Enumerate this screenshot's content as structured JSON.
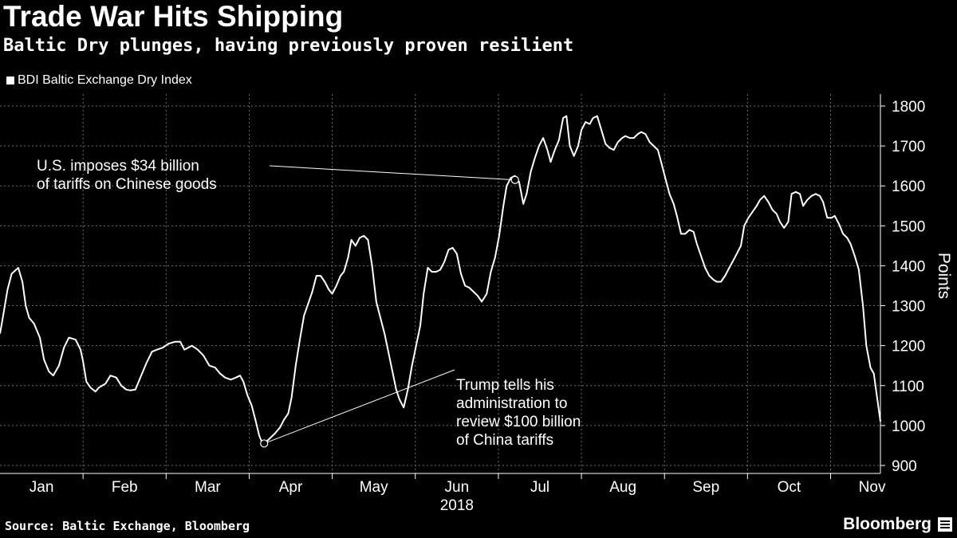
{
  "header": {
    "title": "Trade War Hits Shipping",
    "subtitle": "Baltic Dry plunges, having previously proven resilient"
  },
  "legend": {
    "label": "BDI Baltic Exchange Dry Index"
  },
  "footer": {
    "source": "Source: Baltic Exchange, Bloomberg",
    "brand": "Bloomberg"
  },
  "colors": {
    "background": "#000000",
    "line": "#ffffff",
    "grid": "#6e6e6e"
  },
  "chart_data": {
    "type": "line",
    "title": "Trade War Hits Shipping",
    "subtitle": "Baltic Dry plunges, having previously proven resilient",
    "xlabel": "2018",
    "ylabel": "Points",
    "ylim": [
      880,
      1830
    ],
    "yticks": [
      900,
      1000,
      1100,
      1200,
      1300,
      1400,
      1500,
      1600,
      1700,
      1800
    ],
    "xlim": [
      0,
      10.6
    ],
    "x_ticks": [
      {
        "label": "Jan",
        "x": 0.5
      },
      {
        "label": "Feb",
        "x": 1.5
      },
      {
        "label": "Mar",
        "x": 2.5
      },
      {
        "label": "Apr",
        "x": 3.5
      },
      {
        "label": "May",
        "x": 4.5
      },
      {
        "label": "Jun",
        "x": 5.5
      },
      {
        "label": "Jul",
        "x": 6.5
      },
      {
        "label": "Aug",
        "x": 7.5
      },
      {
        "label": "Sep",
        "x": 8.5
      },
      {
        "label": "Oct",
        "x": 9.5
      },
      {
        "label": "Nov",
        "x": 10.5
      }
    ],
    "month_boundaries": [
      1,
      2,
      3,
      4,
      5,
      6,
      7,
      8,
      9,
      10
    ],
    "year_label": {
      "label": "2018",
      "x": 5.5
    },
    "grid": true,
    "legend_position": "top-left",
    "series": [
      {
        "name": "BDI Baltic Exchange Dry Index",
        "points": [
          [
            0.0,
            1230
          ],
          [
            0.03,
            1265
          ],
          [
            0.09,
            1340
          ],
          [
            0.14,
            1380
          ],
          [
            0.22,
            1395
          ],
          [
            0.27,
            1360
          ],
          [
            0.31,
            1300
          ],
          [
            0.35,
            1270
          ],
          [
            0.41,
            1255
          ],
          [
            0.48,
            1220
          ],
          [
            0.53,
            1165
          ],
          [
            0.59,
            1135
          ],
          [
            0.64,
            1125
          ],
          [
            0.71,
            1150
          ],
          [
            0.77,
            1195
          ],
          [
            0.83,
            1220
          ],
          [
            0.91,
            1215
          ],
          [
            0.97,
            1190
          ],
          [
            1.0,
            1160
          ],
          [
            1.04,
            1110
          ],
          [
            1.09,
            1095
          ],
          [
            1.15,
            1085
          ],
          [
            1.19,
            1095
          ],
          [
            1.27,
            1105
          ],
          [
            1.33,
            1125
          ],
          [
            1.4,
            1120
          ],
          [
            1.46,
            1100
          ],
          [
            1.52,
            1090
          ],
          [
            1.57,
            1088
          ],
          [
            1.63,
            1090
          ],
          [
            1.69,
            1120
          ],
          [
            1.76,
            1155
          ],
          [
            1.83,
            1185
          ],
          [
            1.89,
            1190
          ],
          [
            1.96,
            1195
          ],
          [
            2.03,
            1205
          ],
          [
            2.11,
            1210
          ],
          [
            2.17,
            1210
          ],
          [
            2.22,
            1190
          ],
          [
            2.31,
            1200
          ],
          [
            2.38,
            1190
          ],
          [
            2.45,
            1175
          ],
          [
            2.52,
            1150
          ],
          [
            2.59,
            1145
          ],
          [
            2.65,
            1130
          ],
          [
            2.71,
            1120
          ],
          [
            2.78,
            1115
          ],
          [
            2.84,
            1120
          ],
          [
            2.89,
            1125
          ],
          [
            2.93,
            1110
          ],
          [
            2.98,
            1075
          ],
          [
            3.03,
            1050
          ],
          [
            3.08,
            1010
          ],
          [
            3.12,
            975
          ],
          [
            3.16,
            955
          ],
          [
            3.21,
            960
          ],
          [
            3.26,
            970
          ],
          [
            3.31,
            980
          ],
          [
            3.37,
            995
          ],
          [
            3.42,
            1015
          ],
          [
            3.47,
            1030
          ],
          [
            3.51,
            1070
          ],
          [
            3.56,
            1150
          ],
          [
            3.61,
            1215
          ],
          [
            3.66,
            1275
          ],
          [
            3.71,
            1305
          ],
          [
            3.76,
            1335
          ],
          [
            3.81,
            1375
          ],
          [
            3.86,
            1375
          ],
          [
            3.91,
            1360
          ],
          [
            3.96,
            1340
          ],
          [
            4.0,
            1330
          ],
          [
            4.05,
            1350
          ],
          [
            4.1,
            1375
          ],
          [
            4.14,
            1385
          ],
          [
            4.19,
            1420
          ],
          [
            4.23,
            1465
          ],
          [
            4.28,
            1450
          ],
          [
            4.33,
            1470
          ],
          [
            4.38,
            1475
          ],
          [
            4.43,
            1465
          ],
          [
            4.48,
            1400
          ],
          [
            4.53,
            1310
          ],
          [
            4.58,
            1270
          ],
          [
            4.63,
            1230
          ],
          [
            4.67,
            1190
          ],
          [
            4.72,
            1140
          ],
          [
            4.77,
            1090
          ],
          [
            4.81,
            1065
          ],
          [
            4.86,
            1045
          ],
          [
            4.91,
            1090
          ],
          [
            4.96,
            1150
          ],
          [
            5.01,
            1200
          ],
          [
            5.06,
            1250
          ],
          [
            5.1,
            1330
          ],
          [
            5.15,
            1395
          ],
          [
            5.2,
            1385
          ],
          [
            5.25,
            1385
          ],
          [
            5.3,
            1390
          ],
          [
            5.35,
            1410
          ],
          [
            5.4,
            1440
          ],
          [
            5.45,
            1445
          ],
          [
            5.5,
            1430
          ],
          [
            5.55,
            1380
          ],
          [
            5.6,
            1350
          ],
          [
            5.65,
            1345
          ],
          [
            5.7,
            1335
          ],
          [
            5.75,
            1325
          ],
          [
            5.8,
            1310
          ],
          [
            5.86,
            1330
          ],
          [
            5.91,
            1385
          ],
          [
            5.96,
            1420
          ],
          [
            6.01,
            1475
          ],
          [
            6.06,
            1550
          ],
          [
            6.1,
            1600
          ],
          [
            6.15,
            1620
          ],
          [
            6.2,
            1625
          ],
          [
            6.25,
            1610
          ],
          [
            6.3,
            1555
          ],
          [
            6.34,
            1580
          ],
          [
            6.39,
            1635
          ],
          [
            6.44,
            1670
          ],
          [
            6.49,
            1700
          ],
          [
            6.54,
            1720
          ],
          [
            6.59,
            1690
          ],
          [
            6.63,
            1660
          ],
          [
            6.68,
            1690
          ],
          [
            6.73,
            1715
          ],
          [
            6.78,
            1770
          ],
          [
            6.82,
            1775
          ],
          [
            6.86,
            1700
          ],
          [
            6.91,
            1675
          ],
          [
            6.96,
            1700
          ],
          [
            7.0,
            1740
          ],
          [
            7.05,
            1760
          ],
          [
            7.1,
            1755
          ],
          [
            7.14,
            1770
          ],
          [
            7.19,
            1775
          ],
          [
            7.24,
            1740
          ],
          [
            7.29,
            1705
          ],
          [
            7.34,
            1695
          ],
          [
            7.39,
            1690
          ],
          [
            7.44,
            1710
          ],
          [
            7.49,
            1720
          ],
          [
            7.53,
            1725
          ],
          [
            7.58,
            1720
          ],
          [
            7.63,
            1720
          ],
          [
            7.68,
            1730
          ],
          [
            7.72,
            1735
          ],
          [
            7.77,
            1730
          ],
          [
            7.82,
            1710
          ],
          [
            7.87,
            1700
          ],
          [
            7.92,
            1690
          ],
          [
            7.96,
            1660
          ],
          [
            8.01,
            1620
          ],
          [
            8.06,
            1580
          ],
          [
            8.11,
            1555
          ],
          [
            8.15,
            1525
          ],
          [
            8.2,
            1480
          ],
          [
            8.25,
            1480
          ],
          [
            8.3,
            1490
          ],
          [
            8.35,
            1485
          ],
          [
            8.39,
            1455
          ],
          [
            8.44,
            1425
          ],
          [
            8.49,
            1395
          ],
          [
            8.54,
            1375
          ],
          [
            8.59,
            1365
          ],
          [
            8.63,
            1360
          ],
          [
            8.68,
            1360
          ],
          [
            8.73,
            1375
          ],
          [
            8.78,
            1395
          ],
          [
            8.82,
            1410
          ],
          [
            8.87,
            1430
          ],
          [
            8.92,
            1450
          ],
          [
            8.96,
            1500
          ],
          [
            9.01,
            1520
          ],
          [
            9.06,
            1535
          ],
          [
            9.11,
            1550
          ],
          [
            9.15,
            1565
          ],
          [
            9.2,
            1575
          ],
          [
            9.25,
            1560
          ],
          [
            9.3,
            1540
          ],
          [
            9.35,
            1530
          ],
          [
            9.39,
            1510
          ],
          [
            9.44,
            1495
          ],
          [
            9.49,
            1510
          ],
          [
            9.53,
            1580
          ],
          [
            9.58,
            1585
          ],
          [
            9.63,
            1580
          ],
          [
            9.67,
            1550
          ],
          [
            9.72,
            1565
          ],
          [
            9.77,
            1575
          ],
          [
            9.82,
            1580
          ],
          [
            9.87,
            1575
          ],
          [
            9.91,
            1560
          ],
          [
            9.96,
            1520
          ],
          [
            10.01,
            1520
          ],
          [
            10.05,
            1525
          ],
          [
            10.1,
            1505
          ],
          [
            10.15,
            1480
          ],
          [
            10.2,
            1470
          ],
          [
            10.24,
            1455
          ],
          [
            10.29,
            1425
          ],
          [
            10.34,
            1390
          ],
          [
            10.39,
            1300
          ],
          [
            10.43,
            1200
          ],
          [
            10.48,
            1145
          ],
          [
            10.52,
            1130
          ],
          [
            10.56,
            1070
          ],
          [
            10.6,
            1010
          ]
        ]
      }
    ],
    "annotations": [
      {
        "name": "tariffs-34b",
        "lines": [
          "U.S. imposes $34 billion",
          "of tariffs on Chinese goods"
        ],
        "x": 6.2,
        "y": 1615
      },
      {
        "name": "review-100b",
        "lines": [
          "Trump tells his",
          "administration to",
          "review $100 billion",
          "of China tariffs"
        ],
        "x": 3.18,
        "y": 955
      }
    ]
  }
}
